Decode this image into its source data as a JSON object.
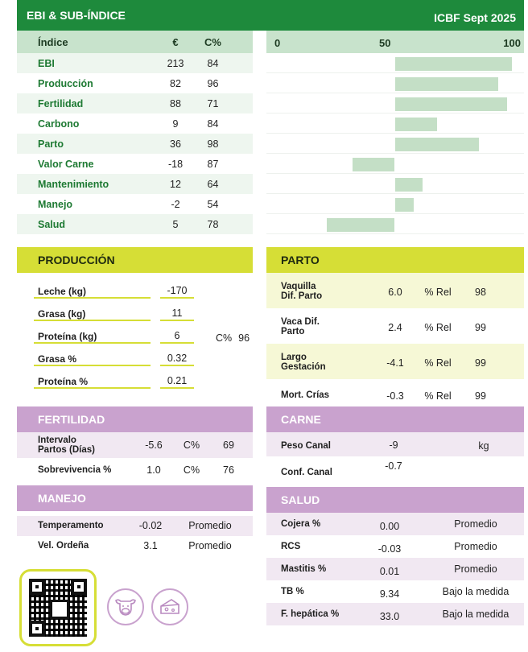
{
  "header": {
    "title": "EBI & SUB-ÍNDICE",
    "source": "ICBF Sept 2025"
  },
  "ebi": {
    "columns": [
      "Índice",
      "€",
      "C%"
    ],
    "scale": [
      "0",
      "50",
      "100"
    ],
    "rows": [
      {
        "name": "EBI",
        "eur": "213",
        "cpct": "84",
        "bar_from": 50,
        "bar_to": 100
      },
      {
        "name": "Producción",
        "eur": "82",
        "cpct": "96",
        "bar_from": 50,
        "bar_to": 94
      },
      {
        "name": "Fertilidad",
        "eur": "88",
        "cpct": "71",
        "bar_from": 50,
        "bar_to": 98
      },
      {
        "name": "Carbono",
        "eur": "9",
        "cpct": "84",
        "bar_from": 50,
        "bar_to": 68
      },
      {
        "name": "Parto",
        "eur": "36",
        "cpct": "98",
        "bar_from": 50,
        "bar_to": 86
      },
      {
        "name": "Valor Carne",
        "eur": "-18",
        "cpct": "87",
        "bar_from": 32,
        "bar_to": 50
      },
      {
        "name": "Mantenimiento",
        "eur": "12",
        "cpct": "64",
        "bar_from": 50,
        "bar_to": 62
      },
      {
        "name": "Manejo",
        "eur": "-2",
        "cpct": "54",
        "bar_from": 50,
        "bar_to": 58
      },
      {
        "name": "Salud",
        "eur": "5",
        "cpct": "78",
        "bar_from": 21,
        "bar_to": 50
      }
    ]
  },
  "produccion": {
    "title": "PRODUCCIÓN",
    "rows": [
      {
        "label": "Leche (kg)",
        "value": "-170"
      },
      {
        "label": "Grasa (kg)",
        "value": "11"
      },
      {
        "label": "Proteína (kg)",
        "value": "6"
      },
      {
        "label": "Grasa %",
        "value": "0.32"
      },
      {
        "label": "Proteína %",
        "value": "0.21"
      }
    ],
    "cpct_label": "C%",
    "cpct_value": "96"
  },
  "parto": {
    "title": "PARTO",
    "rows": [
      {
        "label1": "Vaquilla",
        "label2": "Dif. Parto",
        "value": "6.0",
        "unit": "% Rel",
        "rel": "98"
      },
      {
        "label1": "Vaca Dif.",
        "label2": "Parto",
        "value": "2.4",
        "unit": "% Rel",
        "rel": "99"
      },
      {
        "label1": "Largo",
        "label2": "Gestación",
        "value": "-4.1",
        "unit": "% Rel",
        "rel": "99"
      },
      {
        "label1": "Mort. Crías",
        "label2": "",
        "value": "-0.3",
        "unit": "% Rel",
        "rel": "99"
      }
    ]
  },
  "fertilidad": {
    "title": "FERTILIDAD",
    "rows": [
      {
        "label1": "Intervalo",
        "label2": "Partos (Días)",
        "value": "-5.6",
        "unit": "C%",
        "rel": "69"
      },
      {
        "label1": "Sobrevivencia %",
        "label2": "",
        "value": "1.0",
        "unit": "C%",
        "rel": "76"
      }
    ]
  },
  "carne": {
    "title": "CARNE",
    "rows": [
      {
        "label": "Peso Canal",
        "value": "-9",
        "unit": "kg"
      },
      {
        "label": "Conf. Canal",
        "value": "-0.7",
        "unit": ""
      }
    ]
  },
  "manejo": {
    "title": "MANEJO",
    "rows": [
      {
        "label": "Temperamento",
        "value": "-0.02",
        "rating": "Promedio"
      },
      {
        "label": "Vel. Ordeña",
        "value": "3.1",
        "rating": "Promedio"
      }
    ]
  },
  "salud": {
    "title": "SALUD",
    "rows": [
      {
        "label": "Cojera %",
        "value": "0.00",
        "rating": "Promedio"
      },
      {
        "label": "RCS",
        "value": "-0.03",
        "rating": "Promedio"
      },
      {
        "label": "Mastitis %",
        "value": "0.01",
        "rating": "Promedio"
      },
      {
        "label": "TB %",
        "value": "9.34",
        "rating": "Bajo la medida"
      },
      {
        "label": "F. hepática %",
        "value": "33.0",
        "rating": "Bajo la medida"
      }
    ]
  },
  "icons": [
    "qr-code-icon",
    "cow-icon",
    "cheese-icon"
  ],
  "colors": {
    "green": "#1e8a3c",
    "lime": "#d6de36",
    "purple": "#c9a2ce",
    "bar": "#c4dfc6"
  }
}
